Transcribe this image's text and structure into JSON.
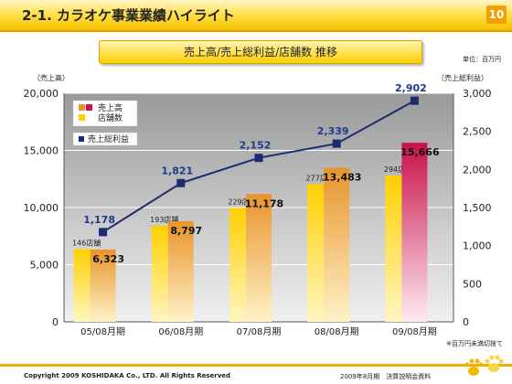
{
  "header": {
    "title": "2-1. カラオケ事業業績ハイライト",
    "page_number": "10"
  },
  "subtitle": "売上高/売上総利益/店舗数 推移",
  "unit_note": "単位：百万円",
  "footnote": "※百万円未満切捨て",
  "footer": {
    "copyright": "Copyright 2009 KOSHIDAKA Co., LTD. All Rights Reserved",
    "right": "2009年8月期　決算説明会資料"
  },
  "colors": {
    "header_yellow": "#ffd31c",
    "bar_orange": "#e8942c",
    "bar_crimson": "#c8104a",
    "store_yellow": "#ffd000",
    "line_navy": "#1c2c70",
    "plot_bg": "#c8c8c8"
  },
  "icons": [
    "paw-print-icon"
  ],
  "chart_data": {
    "type": "bar",
    "categories": [
      "05/08月期",
      "06/08月期",
      "07/08月期",
      "08/08月期",
      "09/08月期"
    ],
    "left_axis_label": "（売上高）",
    "right_axis_label": "（売上総利益）",
    "left_ylim": [
      0,
      20000
    ],
    "left_ticks": [
      0,
      5000,
      10000,
      15000,
      20000
    ],
    "left_tick_labels": [
      "0",
      "5,000",
      "10,000",
      "15,000",
      "20,000"
    ],
    "right_ylim": [
      0,
      3000
    ],
    "right_ticks": [
      0,
      500,
      1000,
      1500,
      2000,
      2500,
      3000
    ],
    "right_tick_labels": [
      "0",
      "500",
      "1,000",
      "1,500",
      "2,000",
      "2,500",
      "3,000"
    ],
    "grid": true,
    "legend_position": "top-left",
    "series": [
      {
        "name": "売上高",
        "kind": "bar",
        "values": [
          6323,
          8797,
          11178,
          13483,
          15666
        ],
        "labels": [
          "6,323",
          "8,797",
          "11,178",
          "13,483",
          "15,666"
        ]
      },
      {
        "name": "店舗数",
        "kind": "bar",
        "values": [
          146,
          193,
          229,
          277,
          294
        ],
        "labels": [
          "146店舗",
          "193店舗",
          "229店舗",
          "277店舗",
          "294店舗"
        ]
      },
      {
        "name": "売上総利益",
        "kind": "line",
        "values": [
          1178,
          1821,
          2152,
          2339,
          2902
        ],
        "labels": [
          "1,178",
          "1,821",
          "2,152",
          "2,339",
          "2,902"
        ]
      }
    ]
  }
}
